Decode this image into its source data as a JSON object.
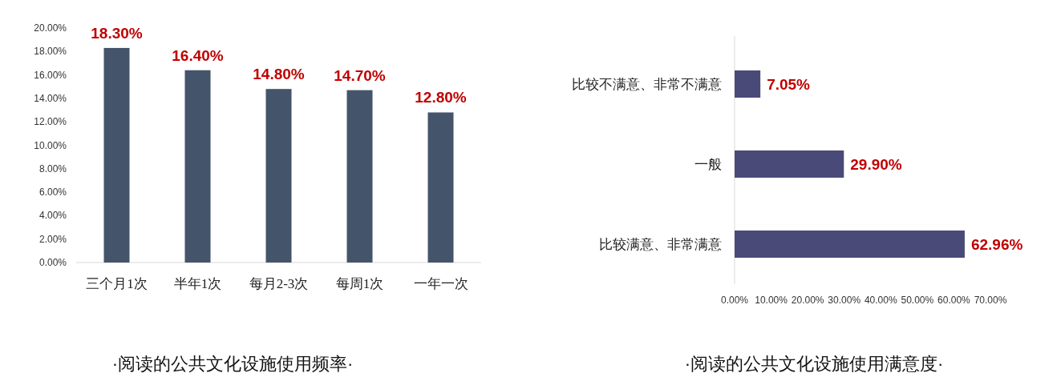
{
  "chart_data": [
    {
      "type": "bar",
      "title": "·阅读的公共文化设施使用频率·",
      "categories": [
        "三个月1次",
        "半年1次",
        "每月2-3次",
        "每周1次",
        "一年一次"
      ],
      "values": [
        18.3,
        16.4,
        14.8,
        14.7,
        12.8
      ],
      "value_labels": [
        "18.30%",
        "16.40%",
        "14.80%",
        "14.70%",
        "12.80%"
      ],
      "color": "#44546a",
      "ylim": [
        0,
        20
      ],
      "yticks": [
        {
          "value": 0,
          "label": "0.00%"
        },
        {
          "value": 2,
          "label": "2.00%"
        },
        {
          "value": 4,
          "label": "4.00%"
        },
        {
          "value": 6,
          "label": "6.00%"
        },
        {
          "value": 8,
          "label": "8.00%"
        },
        {
          "value": 10,
          "label": "10.00%"
        },
        {
          "value": 12,
          "label": "12.00%"
        },
        {
          "value": 14,
          "label": "14.00%"
        },
        {
          "value": 16,
          "label": "16.00%"
        },
        {
          "value": 18,
          "label": "18.00%"
        },
        {
          "value": 20,
          "label": "20.00%"
        }
      ]
    },
    {
      "type": "bar",
      "orientation": "horizontal",
      "title": "·阅读的公共文化设施使用满意度·",
      "categories": [
        "比较不满意、非常不满意",
        "一般",
        "比较满意、非常满意"
      ],
      "values": [
        7.05,
        29.9,
        62.96
      ],
      "value_labels": [
        "7.05%",
        "29.90%",
        "62.96%"
      ],
      "color": "#4a4a78",
      "xlim": [
        0,
        70
      ],
      "xticks": [
        {
          "value": 0,
          "label": "0.00%"
        },
        {
          "value": 10,
          "label": "10.00%"
        },
        {
          "value": 20,
          "label": "20.00%"
        },
        {
          "value": 30,
          "label": "30.00%"
        },
        {
          "value": 40,
          "label": "40.00%"
        },
        {
          "value": 50,
          "label": "50.00%"
        },
        {
          "value": 60,
          "label": "60.00%"
        },
        {
          "value": 70,
          "label": "70.00%"
        }
      ]
    }
  ]
}
